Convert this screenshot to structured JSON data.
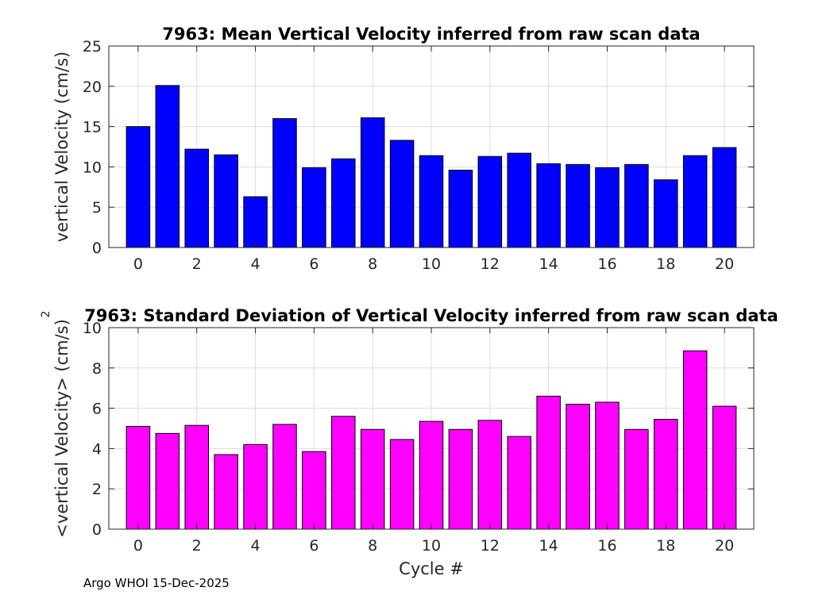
{
  "chart_data": [
    {
      "type": "bar",
      "title": "7963: Mean Vertical Velocity inferred from raw scan data",
      "xlabel": "",
      "ylabel": "vertical Velocity (cm/s)",
      "x": [
        0,
        1,
        2,
        3,
        4,
        5,
        6,
        7,
        8,
        9,
        10,
        11,
        12,
        13,
        14,
        15,
        16,
        17,
        18,
        19,
        20
      ],
      "values": [
        15.0,
        20.1,
        12.2,
        11.5,
        6.3,
        16.0,
        9.9,
        11.0,
        16.1,
        13.3,
        11.4,
        9.6,
        11.3,
        11.7,
        10.4,
        10.3,
        9.9,
        10.3,
        8.4,
        11.4,
        12.4
      ],
      "xlim": [
        -1,
        21
      ],
      "ylim": [
        0,
        25
      ],
      "xticks": [
        0,
        2,
        4,
        6,
        8,
        10,
        12,
        14,
        16,
        18,
        20
      ],
      "yticks": [
        0,
        5,
        10,
        15,
        20,
        25
      ],
      "bar_color": "#0000ff",
      "grid": true
    },
    {
      "type": "bar",
      "title": "7963: Standard Deviation of Vertical Velocity inferred from raw scan data",
      "xlabel": "Cycle #",
      "ylabel": "<vertical Velocity> (cm/s)",
      "ylabel_superscript": "2",
      "x": [
        0,
        1,
        2,
        3,
        4,
        5,
        6,
        7,
        8,
        9,
        10,
        11,
        12,
        13,
        14,
        15,
        16,
        17,
        18,
        19,
        20
      ],
      "values": [
        5.1,
        4.75,
        5.15,
        3.7,
        4.2,
        5.2,
        3.85,
        5.6,
        4.95,
        4.45,
        5.35,
        4.95,
        5.4,
        4.6,
        6.6,
        6.2,
        6.3,
        4.95,
        5.45,
        8.85,
        6.1
      ],
      "xlim": [
        -1,
        21
      ],
      "ylim": [
        0,
        10
      ],
      "xticks": [
        0,
        2,
        4,
        6,
        8,
        10,
        12,
        14,
        16,
        18,
        20
      ],
      "yticks": [
        0,
        2,
        4,
        6,
        8,
        10
      ],
      "bar_color": "#ff00ff",
      "grid": true
    }
  ],
  "footer": {
    "text": "Argo WHOI 15-Dec-2025"
  }
}
